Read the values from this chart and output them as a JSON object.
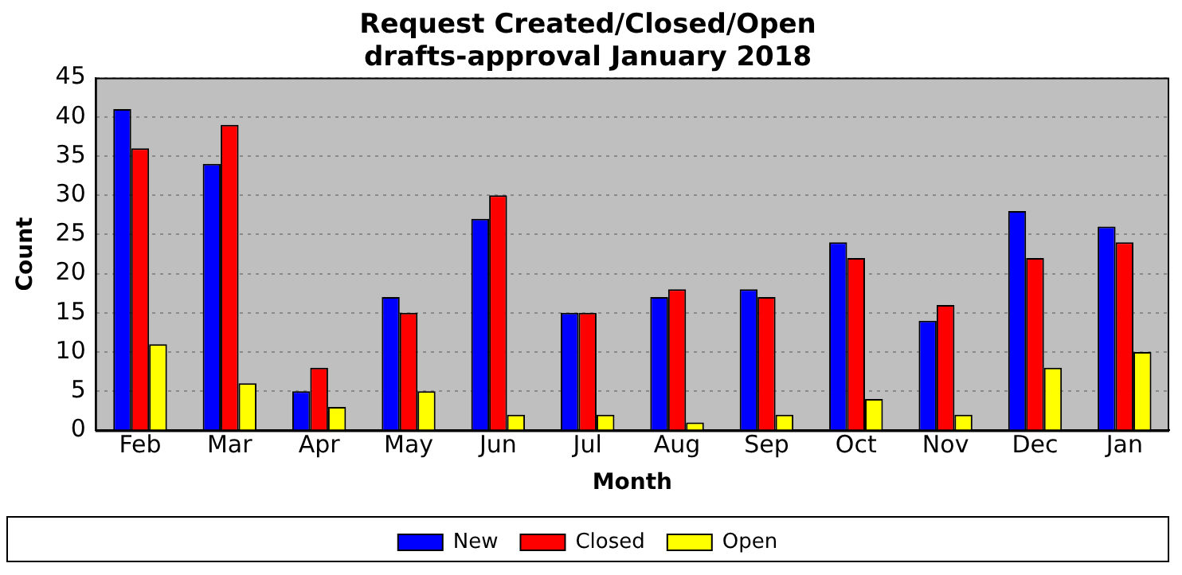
{
  "chart_data": {
    "type": "bar",
    "title": [
      "Request Created/Closed/Open",
      "drafts-approval January 2018"
    ],
    "xlabel": "Month",
    "ylabel": "Count",
    "categories": [
      "Feb",
      "Mar",
      "Apr",
      "May",
      "Jun",
      "Jul",
      "Aug",
      "Sep",
      "Oct",
      "Nov",
      "Dec",
      "Jan"
    ],
    "series": [
      {
        "name": "New",
        "color": "#0000ff",
        "values": [
          41,
          34,
          5,
          17,
          27,
          15,
          17,
          18,
          24,
          14,
          28,
          26
        ]
      },
      {
        "name": "Closed",
        "color": "#ff0000",
        "values": [
          36,
          39,
          8,
          15,
          30,
          15,
          18,
          17,
          22,
          16,
          22,
          24
        ]
      },
      {
        "name": "Open",
        "color": "#ffff00",
        "values": [
          11,
          6,
          3,
          5,
          2,
          2,
          1,
          2,
          4,
          2,
          8,
          10
        ]
      }
    ],
    "ylim": [
      0,
      45
    ],
    "yticks": [
      0,
      5,
      10,
      15,
      20,
      25,
      30,
      35,
      40,
      45
    ],
    "grid": "y",
    "legend": "bottom"
  }
}
